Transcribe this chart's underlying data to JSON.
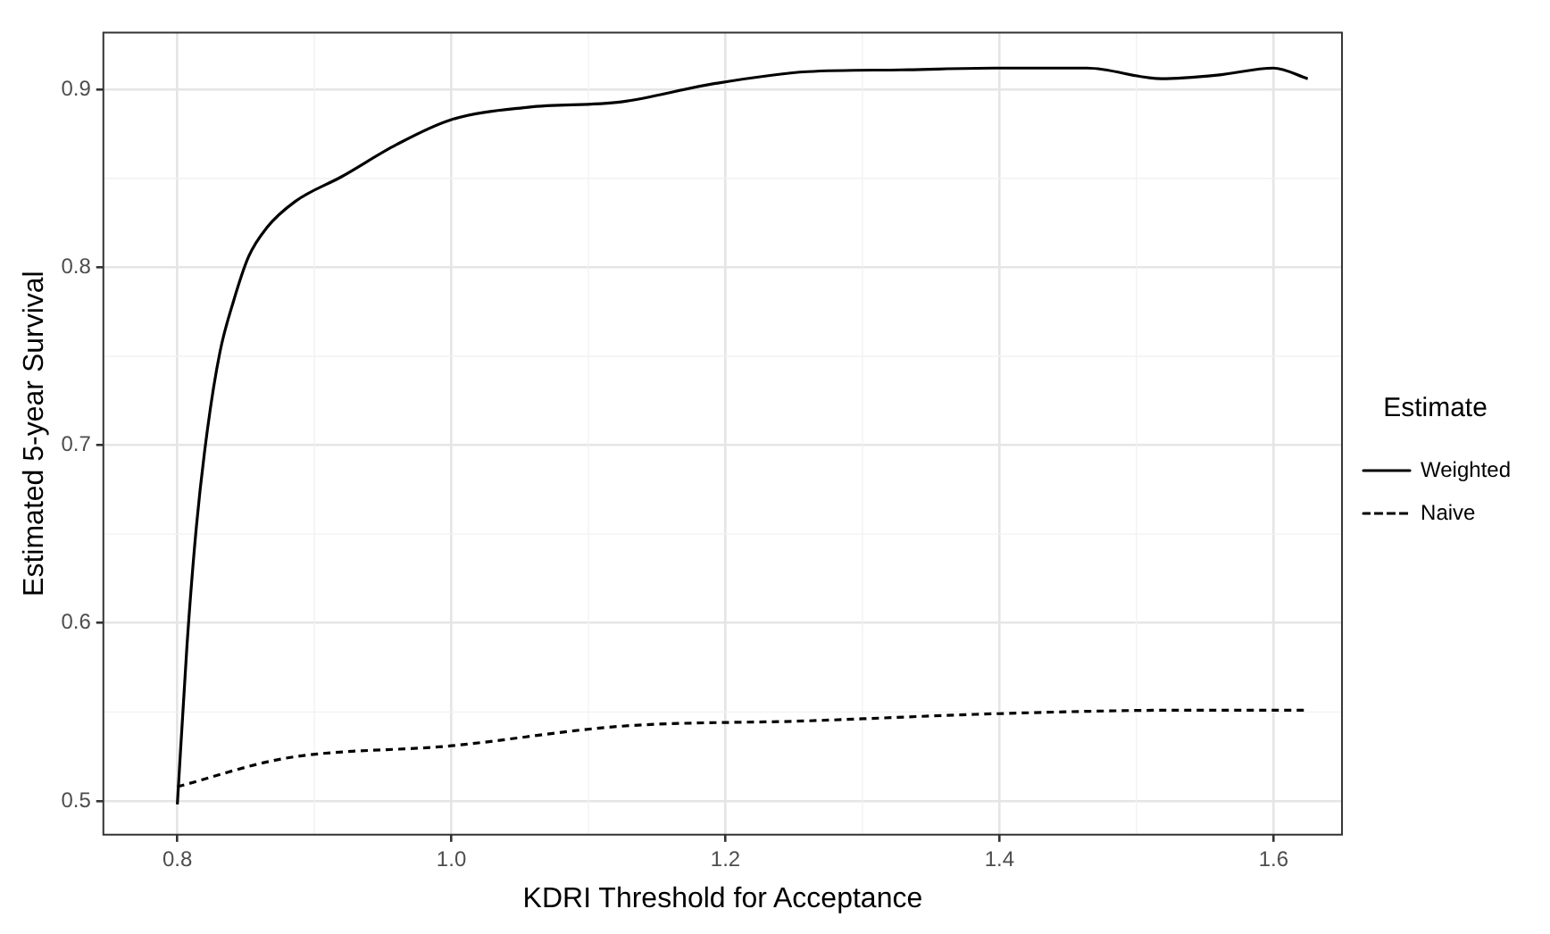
{
  "chart_data": {
    "type": "line",
    "xlabel": "KDRI Threshold for Acceptance",
    "ylabel": "Estimated 5-year Survival",
    "legend_title": "Estimate",
    "legend": "right",
    "grid": true,
    "marker": "none",
    "xlim": [
      0.746,
      1.65
    ],
    "xticks": [
      {
        "value": 0.8,
        "label": "0.8"
      },
      {
        "value": 1.0,
        "label": "1.0"
      },
      {
        "value": 1.2,
        "label": "1.2"
      },
      {
        "value": 1.4,
        "label": "1.4"
      },
      {
        "value": 1.6,
        "label": "1.6"
      }
    ],
    "ylim": [
      0.481,
      0.932
    ],
    "yticks": [
      {
        "value": 0.5,
        "label": "0.5"
      },
      {
        "value": 0.6,
        "label": "0.6"
      },
      {
        "value": 0.7,
        "label": "0.7"
      },
      {
        "value": 0.8,
        "label": "0.8"
      },
      {
        "value": 0.9,
        "label": "0.9"
      }
    ],
    "series": [
      {
        "name": "Weighted",
        "color": "#000000",
        "line_style": "solid",
        "x": [
          0.8,
          0.807,
          0.814,
          0.822,
          0.831,
          0.841,
          0.852,
          0.865,
          0.886,
          0.92,
          0.96,
          1.0,
          1.056,
          1.124,
          1.19,
          1.26,
          1.328,
          1.396,
          1.464,
          1.518,
          1.559,
          1.6,
          1.625
        ],
        "values": [
          0.498,
          0.587,
          0.655,
          0.709,
          0.752,
          0.781,
          0.806,
          0.822,
          0.837,
          0.851,
          0.869,
          0.883,
          0.89,
          0.893,
          0.903,
          0.91,
          0.911,
          0.912,
          0.912,
          0.906,
          0.908,
          0.912,
          0.906
        ]
      },
      {
        "name": "Naive",
        "color": "#000000",
        "line_style": "dashed",
        "x": [
          0.8,
          0.879,
          1.0,
          1.124,
          1.26,
          1.396,
          1.532,
          1.625
        ],
        "values": [
          0.508,
          0.524,
          0.531,
          0.542,
          0.545,
          0.549,
          0.551,
          0.551
        ]
      }
    ]
  }
}
